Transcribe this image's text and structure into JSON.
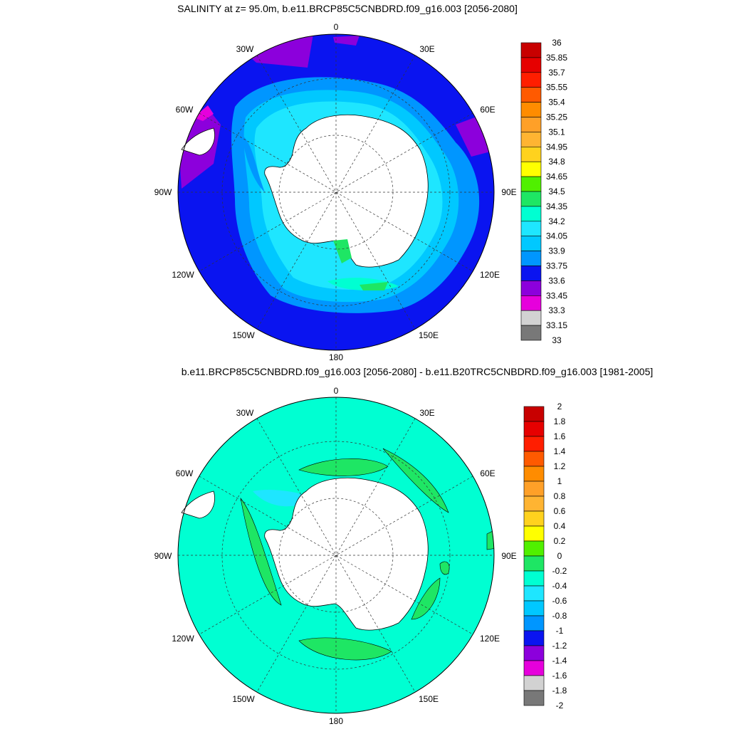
{
  "titles": {
    "top": "SALINITY at z=  95.0m, b.e11.BRCP85C5CNBDRD.f09_g16.003 [2056-2080]",
    "bottom": "b.e11.BRCP85C5CNBDRD.f09_g16.003 [2056-2080] - b.e11.B20TRC5CNBDRD.f09_g16.003 [1981-2005]"
  },
  "longitude_labels": [
    "0",
    "30E",
    "60E",
    "90E",
    "120E",
    "150E",
    "180",
    "150W",
    "120W",
    "90W",
    "60W",
    "30W"
  ],
  "colors": {
    "land": "#ffffff",
    "ocean_top_dominant": "#0a14f0",
    "ocean_bottom_dominant": "#00ffd2"
  },
  "colorbar_top": {
    "labels": [
      "36",
      "35.85",
      "35.7",
      "35.55",
      "35.4",
      "35.25",
      "35.1",
      "34.95",
      "34.8",
      "34.65",
      "34.5",
      "34.35",
      "34.2",
      "34.05",
      "33.9",
      "33.75",
      "33.6",
      "33.45",
      "33.3",
      "33.15",
      "33"
    ],
    "colors": [
      "#c80000",
      "#e60000",
      "#ff1e00",
      "#ff5a00",
      "#ff8c00",
      "#ffa028",
      "#ffb432",
      "#ffd21e",
      "#ffff00",
      "#50f000",
      "#1ee664",
      "#00ffd2",
      "#1ee6ff",
      "#00c8ff",
      "#0096ff",
      "#0a14f0",
      "#8c00dc",
      "#e600dc",
      "#d2d2d2",
      "#787878"
    ]
  },
  "colorbar_bottom": {
    "labels": [
      "2",
      "1.8",
      "1.6",
      "1.4",
      "1.2",
      "1",
      "0.8",
      "0.6",
      "0.4",
      "0.2",
      "0",
      "-0.2",
      "-0.4",
      "-0.6",
      "-0.8",
      "-1",
      "-1.2",
      "-1.4",
      "-1.6",
      "-1.8",
      "-2"
    ],
    "colors": [
      "#c80000",
      "#e60000",
      "#ff1e00",
      "#ff5a00",
      "#ff8c00",
      "#ffa028",
      "#ffb432",
      "#ffd21e",
      "#ffff00",
      "#50f000",
      "#1ee664",
      "#00ffd2",
      "#1ee6ff",
      "#00c8ff",
      "#0096ff",
      "#0a14f0",
      "#8c00dc",
      "#e600dc",
      "#d2d2d2",
      "#787878"
    ]
  }
}
